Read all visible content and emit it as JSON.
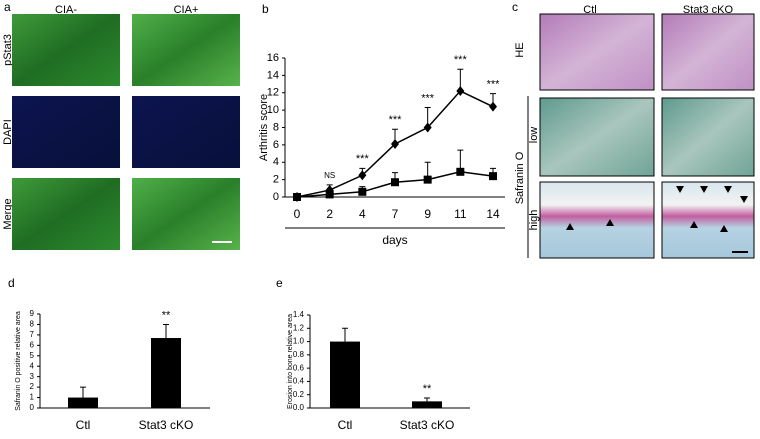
{
  "panel_a": {
    "label": "a",
    "columns": [
      "CIA-",
      "CIA+"
    ],
    "rows": [
      "pStat3",
      "DAPI",
      "Merge"
    ]
  },
  "panel_c": {
    "label": "c",
    "columns": [
      "Ctl",
      "Stat3 cKO"
    ],
    "rows": [
      "HE",
      "low",
      "high"
    ],
    "group": "Safranin O"
  },
  "chart_data": [
    {
      "type": "line",
      "panel": "b",
      "ylabel": "Arthritis score",
      "xlabel": "days",
      "categories": [
        "0",
        "2",
        "4",
        "7",
        "9",
        "11",
        "14"
      ],
      "series": [
        {
          "color": "#000000",
          "marker": "diamond",
          "values": [
            0,
            0.8,
            2.5,
            6.1,
            8,
            12.2,
            10.4
          ],
          "errors": [
            0,
            0.6,
            0.8,
            1.7,
            2.3,
            2.5,
            1.5
          ]
        },
        {
          "color": "#000000",
          "marker": "square",
          "values": [
            0,
            0.3,
            0.6,
            1.7,
            2,
            2.9,
            2.4
          ],
          "errors": [
            0,
            0.3,
            0.6,
            1.1,
            2,
            2.5,
            0.9
          ]
        }
      ],
      "annotations": [
        null,
        "NS",
        "***",
        "***",
        "***",
        "***",
        "***"
      ],
      "ylim": [
        0,
        16
      ],
      "yticks": [
        0,
        2,
        4,
        6,
        8,
        10,
        12,
        14,
        16
      ],
      "grid": false
    },
    {
      "type": "bar",
      "panel": "d",
      "ylabel": "Safranin O positive relative area",
      "categories": [
        "Ctl",
        "Stat3 cKO"
      ],
      "values": [
        1.0,
        6.7
      ],
      "errors": [
        1.0,
        1.3
      ],
      "color": "#000000",
      "annotations": [
        null,
        "**"
      ],
      "ylim": [
        0,
        9
      ],
      "yticks": [
        0,
        1,
        2,
        3,
        4,
        5,
        6,
        7,
        8,
        9
      ],
      "grid": false
    },
    {
      "type": "bar",
      "panel": "e",
      "ylabel": "Erosion into bone relative area",
      "categories": [
        "Ctl",
        "Stat3 cKO"
      ],
      "values": [
        1.0,
        0.1
      ],
      "errors": [
        0.2,
        0.05
      ],
      "color": "#000000",
      "annotations": [
        null,
        "**"
      ],
      "ylim": [
        0,
        1.4
      ],
      "yticks": [
        {
          "value": 0,
          "label": "0.0"
        },
        0.2,
        0.4,
        0.6,
        0.8,
        {
          "value": 1,
          "label": "1.0"
        },
        1.2,
        1.4
      ],
      "grid": false
    }
  ]
}
